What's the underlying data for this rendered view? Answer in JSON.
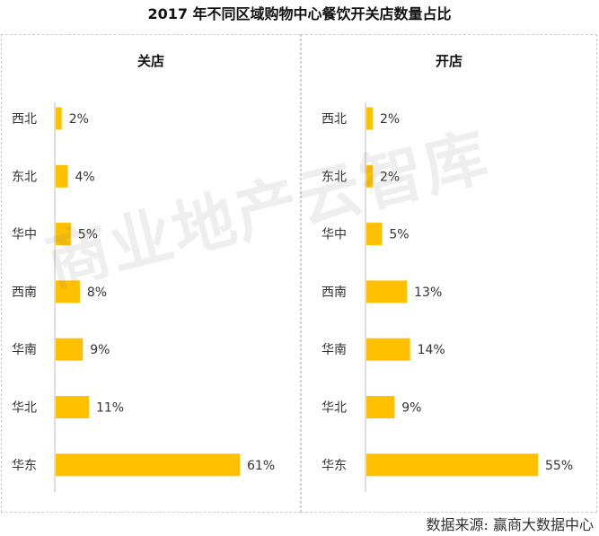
{
  "title": "2017 年不同区域购物中心餐饮开关店数量占比",
  "watermark": "商业地产云智库",
  "source": "数据来源:  赢商大数据中心",
  "colors": {
    "bar": "#FFC000",
    "axis": "#bbbbbb"
  },
  "chart_data": [
    {
      "type": "bar",
      "orientation": "horizontal",
      "title": "关店",
      "categories": [
        "西北",
        "东北",
        "华中",
        "西南",
        "华南",
        "华北",
        "华东"
      ],
      "values": [
        2,
        4,
        5,
        8,
        9,
        11,
        61
      ],
      "value_labels": [
        "2%",
        "4%",
        "5%",
        "8%",
        "9%",
        "11%",
        "61%"
      ],
      "unit": "%"
    },
    {
      "type": "bar",
      "orientation": "horizontal",
      "title": "开店",
      "categories": [
        "西北",
        "东北",
        "华中",
        "西南",
        "华南",
        "华北",
        "华东"
      ],
      "values": [
        2,
        2,
        5,
        13,
        14,
        9,
        55
      ],
      "value_labels": [
        "2%",
        "2%",
        "5%",
        "13%",
        "14%",
        "9%",
        "55%"
      ],
      "unit": "%"
    }
  ]
}
